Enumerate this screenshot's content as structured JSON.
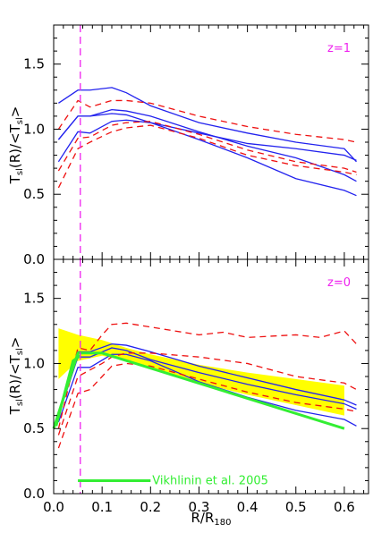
{
  "chart_data": [
    {
      "type": "line",
      "panel": "top",
      "annotation": "z=1",
      "ylabel": "T_sl(R)/<T_sl>",
      "xlim": [
        0,
        0.65
      ],
      "ylim": [
        0,
        1.8
      ],
      "x_ticks": [
        "0.0",
        "0.1",
        "0.2",
        "0.3",
        "0.4",
        "0.5",
        "0.6"
      ],
      "y_ticks": [
        "0.0",
        "0.5",
        "1.0",
        "1.5"
      ],
      "vertical_line_x": 0.055,
      "colors": {
        "blue": "#2222ee",
        "red": "#ee1111",
        "vline": "#ee22ee",
        "axis": "#000000"
      },
      "series": [
        {
          "color": "blue",
          "style": "solid",
          "x": [
            0.01,
            0.05,
            0.075,
            0.12,
            0.15,
            0.2,
            0.3,
            0.4,
            0.5,
            0.6,
            0.625
          ],
          "y": [
            1.2,
            1.3,
            1.3,
            1.32,
            1.28,
            1.18,
            1.05,
            0.97,
            0.9,
            0.85,
            0.75
          ]
        },
        {
          "color": "blue",
          "style": "solid",
          "x": [
            0.01,
            0.05,
            0.075,
            0.12,
            0.15,
            0.2,
            0.3,
            0.4,
            0.5,
            0.6,
            0.625
          ],
          "y": [
            0.92,
            1.1,
            1.1,
            1.15,
            1.14,
            1.1,
            0.98,
            0.87,
            0.78,
            0.65,
            0.6
          ]
        },
        {
          "color": "blue",
          "style": "solid",
          "x": [
            0.01,
            0.05,
            0.075,
            0.12,
            0.15,
            0.2,
            0.3,
            0.4,
            0.5,
            0.6,
            0.625
          ],
          "y": [
            0.75,
            0.98,
            0.97,
            1.06,
            1.07,
            1.05,
            0.92,
            0.78,
            0.62,
            0.53,
            0.49
          ]
        },
        {
          "color": "blue",
          "style": "solid",
          "x": [
            0.01,
            0.05,
            0.075,
            0.12,
            0.15,
            0.2,
            0.3,
            0.4,
            0.5,
            0.6,
            0.625
          ],
          "y": [
            0.92,
            1.1,
            1.1,
            1.12,
            1.11,
            1.05,
            0.97,
            0.89,
            0.85,
            0.8,
            0.76
          ]
        },
        {
          "color": "red",
          "style": "dashed",
          "x": [
            0.01,
            0.05,
            0.075,
            0.12,
            0.15,
            0.2,
            0.3,
            0.4,
            0.5,
            0.6,
            0.625
          ],
          "y": [
            1.0,
            1.22,
            1.17,
            1.22,
            1.22,
            1.2,
            1.1,
            1.02,
            0.96,
            0.92,
            0.9
          ]
        },
        {
          "color": "red",
          "style": "dashed",
          "x": [
            0.01,
            0.05,
            0.075,
            0.12,
            0.15,
            0.2,
            0.3,
            0.4,
            0.5,
            0.6,
            0.625
          ],
          "y": [
            0.68,
            0.93,
            0.94,
            1.03,
            1.05,
            1.06,
            0.96,
            0.84,
            0.75,
            0.7,
            0.67
          ]
        },
        {
          "color": "red",
          "style": "dashed",
          "x": [
            0.01,
            0.05,
            0.075,
            0.12,
            0.15,
            0.2,
            0.3,
            0.4,
            0.5,
            0.6,
            0.625
          ],
          "y": [
            0.55,
            0.85,
            0.9,
            0.98,
            1.01,
            1.03,
            0.93,
            0.8,
            0.72,
            0.67,
            0.65
          ]
        }
      ]
    },
    {
      "type": "line",
      "panel": "bottom",
      "annotation": "z=0",
      "xlabel": "R/R_180",
      "ylabel": "T_sl(R)/<T_sl>",
      "xlim": [
        0,
        0.65
      ],
      "ylim": [
        0,
        1.8
      ],
      "x_ticks": [
        "0.0",
        "0.1",
        "0.2",
        "0.3",
        "0.4",
        "0.5",
        "0.6"
      ],
      "y_ticks": [
        "0.0",
        "0.5",
        "1.0",
        "1.5"
      ],
      "vertical_line_x": 0.055,
      "colors": {
        "blue": "#2222ee",
        "red": "#ee1111",
        "vline": "#ee22ee",
        "band": "#ffff00",
        "green": "#33ee33",
        "axis": "#000000"
      },
      "band": {
        "x": [
          0.01,
          0.05,
          0.1,
          0.15,
          0.2,
          0.3,
          0.4,
          0.5,
          0.6
        ],
        "upper": [
          1.27,
          1.22,
          1.18,
          1.12,
          1.07,
          0.99,
          0.93,
          0.88,
          0.83
        ],
        "lower": [
          0.88,
          1.02,
          1.06,
          1.02,
          0.97,
          0.85,
          0.76,
          0.68,
          0.6
        ]
      },
      "series": [
        {
          "color": "blue",
          "style": "solid",
          "x": [
            0.01,
            0.05,
            0.075,
            0.12,
            0.15,
            0.2,
            0.3,
            0.4,
            0.5,
            0.6,
            0.625
          ],
          "y": [
            0.6,
            1.05,
            1.05,
            1.12,
            1.1,
            1.03,
            0.93,
            0.84,
            0.76,
            0.69,
            0.65
          ]
        },
        {
          "color": "blue",
          "style": "solid",
          "x": [
            0.01,
            0.05,
            0.075,
            0.12,
            0.15,
            0.2,
            0.3,
            0.4,
            0.5,
            0.6,
            0.625
          ],
          "y": [
            0.62,
            1.09,
            1.09,
            1.15,
            1.14,
            1.09,
            0.98,
            0.89,
            0.8,
            0.72,
            0.68
          ]
        },
        {
          "color": "blue",
          "style": "solid",
          "x": [
            0.01,
            0.05,
            0.075,
            0.12,
            0.15,
            0.2,
            0.3,
            0.4,
            0.5,
            0.6,
            0.625
          ],
          "y": [
            0.55,
            0.97,
            0.97,
            1.07,
            1.07,
            1.02,
            0.86,
            0.74,
            0.64,
            0.57,
            0.52
          ]
        },
        {
          "color": "red",
          "style": "dashed",
          "x": [
            0.01,
            0.05,
            0.075,
            0.1,
            0.12,
            0.15,
            0.2,
            0.3,
            0.35,
            0.4,
            0.5,
            0.55,
            0.6,
            0.625
          ],
          "y": [
            0.5,
            1.12,
            1.1,
            1.22,
            1.3,
            1.31,
            1.28,
            1.22,
            1.24,
            1.2,
            1.22,
            1.2,
            1.25,
            1.15
          ]
        },
        {
          "color": "red",
          "style": "dashed",
          "x": [
            0.01,
            0.05,
            0.075,
            0.1,
            0.12,
            0.15,
            0.2,
            0.3,
            0.4,
            0.5,
            0.6,
            0.625
          ],
          "y": [
            0.45,
            0.9,
            0.95,
            1.0,
            1.05,
            1.08,
            1.08,
            1.05,
            1.0,
            0.9,
            0.85,
            0.8
          ]
        },
        {
          "color": "red",
          "style": "dashed",
          "x": [
            0.01,
            0.05,
            0.075,
            0.1,
            0.12,
            0.15,
            0.2,
            0.3,
            0.4,
            0.5,
            0.6,
            0.625
          ],
          "y": [
            0.35,
            0.77,
            0.8,
            0.9,
            0.98,
            1.0,
            0.98,
            0.88,
            0.78,
            0.7,
            0.65,
            0.63
          ]
        },
        {
          "color": "green",
          "style": "solid",
          "x": [
            0.0,
            0.05,
            0.1,
            0.6
          ],
          "y": [
            0.5,
            1.08,
            1.08,
            0.5
          ]
        },
        {
          "color": "green",
          "style": "solid",
          "x": [
            0.005,
            0.04,
            0.055
          ],
          "y": [
            0.52,
            1.02,
            1.06
          ]
        }
      ],
      "legend": {
        "label": "Vikhlinin et al. 2005",
        "line_x": [
          0.05,
          0.2
        ],
        "line_y": 0.1
      }
    }
  ]
}
